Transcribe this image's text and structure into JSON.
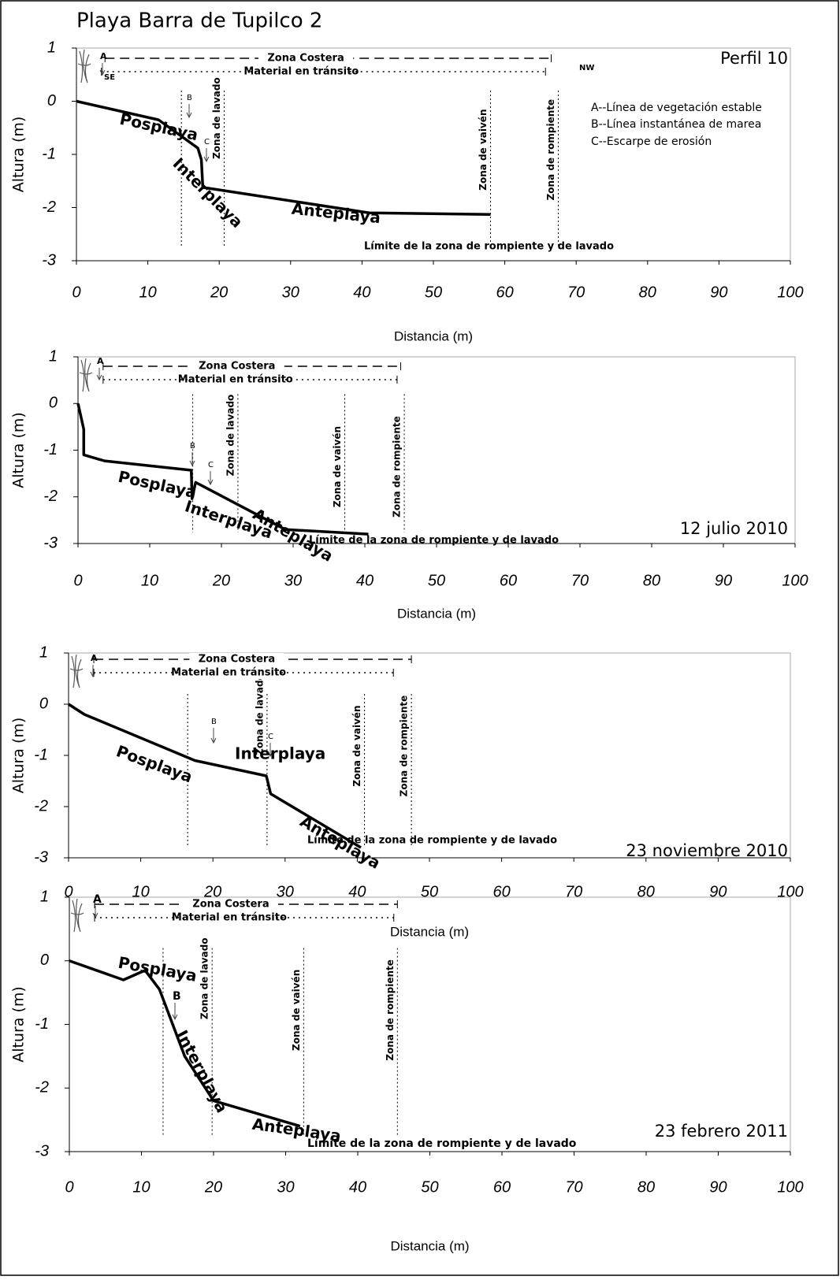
{
  "title": "Playa Barra de Tupilco 2",
  "chart_data": [
    {
      "type": "line",
      "tag": "Perfil 10",
      "x_label": "Distancia (m)",
      "y_label": "Altura (m)",
      "xlim": [
        0,
        100
      ],
      "ylim": [
        -3,
        1
      ],
      "xticks": [
        0,
        10,
        20,
        30,
        40,
        50,
        60,
        70,
        80,
        90,
        100
      ],
      "yticks": [
        -3,
        -2,
        -1,
        0,
        1
      ],
      "grid": false,
      "color": "#000000",
      "x": [
        0,
        11.5,
        17,
        17.5,
        17.7,
        41,
        58
      ],
      "values": [
        0,
        -0.35,
        -0.88,
        -1.1,
        -1.62,
        -2.1,
        -2.13
      ],
      "zones": [
        {
          "label": null,
          "x": 14.7
        },
        {
          "label": "Zona de lavado",
          "x": 20.7
        },
        {
          "label": "Zona de vaivén",
          "x": 58
        },
        {
          "label": "Zona de rompiente",
          "x": 67.5
        }
      ],
      "coastal": [
        {
          "label": "Zona Costera",
          "x0": 4,
          "x1": 66.5,
          "style": "dashed"
        },
        {
          "label": "Material en tránsito",
          "x0": 3.5,
          "x1": 65.7,
          "style": "dotted"
        }
      ],
      "annotations": [
        "A",
        "B",
        "C",
        "SE",
        "NW",
        "Posplaya",
        "Interplaya",
        "Anteplaya",
        "Límite de la zona de rompiente y  de lavado"
      ],
      "notes": [
        "A--Línea de vegetación estable",
        "B--Línea instantánea de marea",
        "C--Escarpe de erosión"
      ]
    },
    {
      "type": "line",
      "tag": "12 julio 2010",
      "x_label": "Distancia (m)",
      "y_label": "Altura (m)",
      "xlim": [
        0,
        100
      ],
      "ylim": [
        -3,
        1
      ],
      "xticks": [
        0,
        10,
        20,
        30,
        40,
        50,
        60,
        70,
        80,
        90,
        100
      ],
      "yticks": [
        -3,
        -2,
        -1,
        0,
        1
      ],
      "grid": false,
      "color": "#000000",
      "x": [
        0,
        0.8,
        0.8,
        3.7,
        15.8,
        15.9,
        16.4,
        28.9,
        40.5
      ],
      "values": [
        0,
        -0.55,
        -1.1,
        -1.23,
        -1.43,
        -2.04,
        -1.69,
        -2.7,
        -2.8
      ],
      "zones": [
        {
          "label": null,
          "x": 16
        },
        {
          "label": "Zona de lavado",
          "x": 22.3
        },
        {
          "label": "Zona de vaivén",
          "x": 37.2
        },
        {
          "label": "Zona de rompiente",
          "x": 45.5
        }
      ],
      "coastal": [
        {
          "label": "Zona Costera",
          "x0": 3.5,
          "x1": 45,
          "style": "dashed"
        },
        {
          "label": "Material en tránsito",
          "x0": 3.5,
          "x1": 44.5,
          "style": "dotted"
        }
      ],
      "annotations": [
        "A",
        "B",
        "C",
        "Posplaya",
        "Interplaya",
        "Anteplaya",
        "Límite de la zona de rompiente y  de lavado"
      ]
    },
    {
      "type": "line",
      "tag": "23 noviembre 2010",
      "x_label": "Distancia (m)",
      "y_label": "Altura (m)",
      "xlim": [
        0,
        100
      ],
      "ylim": [
        -3,
        1
      ],
      "xticks": [
        0,
        10,
        20,
        30,
        40,
        50,
        60,
        70,
        80,
        90,
        100
      ],
      "yticks": [
        -3,
        -2,
        -1,
        0,
        1
      ],
      "grid": false,
      "color": "#000000",
      "x": [
        0,
        2.2,
        17.5,
        27.4,
        28,
        40.5
      ],
      "values": [
        0,
        -0.2,
        -1.1,
        -1.4,
        -1.75,
        -2.8
      ],
      "zones": [
        {
          "label": null,
          "x": 16.5
        },
        {
          "label": "Zona de lavado",
          "x": 27.5
        },
        {
          "label": "Zona de vaivén",
          "x": 41
        },
        {
          "label": "Zona de rompiente",
          "x": 47.5
        }
      ],
      "coastal": [
        {
          "label": "Zona Costera",
          "x0": 3.5,
          "x1": 47.5,
          "style": "dashed"
        },
        {
          "label": "Material en tránsito",
          "x0": 3.5,
          "x1": 45,
          "style": "dotted"
        }
      ],
      "annotations": [
        "A",
        "B",
        "C",
        "Posplaya",
        "Interplaya",
        "Anteplaya",
        "Límite de la zona de rompiente y  de lavado"
      ]
    },
    {
      "type": "line",
      "tag": "23 febrero 2011",
      "x_label": "Distancia (m)",
      "y_label": "Altura (m)",
      "xlim": [
        0,
        100
      ],
      "ylim": [
        -3,
        1
      ],
      "xticks": [
        0,
        10,
        20,
        30,
        40,
        50,
        60,
        70,
        80,
        90,
        100
      ],
      "yticks": [
        -3,
        -2,
        -1,
        0,
        1
      ],
      "grid": false,
      "color": "#000000",
      "x": [
        0,
        7.5,
        10.5,
        12.5,
        16,
        20,
        32
      ],
      "values": [
        0,
        -0.3,
        -0.15,
        -0.45,
        -1.5,
        -2.2,
        -2.6
      ],
      "zones": [
        {
          "label": null,
          "x": 13
        },
        {
          "label": "Zona de lavado",
          "x": 19.8
        },
        {
          "label": "Zona de vaivén",
          "x": 32.5
        },
        {
          "label": "Zona de rompiente",
          "x": 45.5
        }
      ],
      "coastal": [
        {
          "label": "Zona Costera",
          "x0": 3.5,
          "x1": 45.5,
          "style": "dashed"
        },
        {
          "label": "Material en tránsito",
          "x0": 3.5,
          "x1": 45,
          "style": "dotted"
        }
      ],
      "annotations": [
        "A",
        "B",
        "Posplaya",
        "Interplaya",
        "Anteplaya",
        "Límite de la zona de rompiente y  de lavado"
      ]
    }
  ]
}
